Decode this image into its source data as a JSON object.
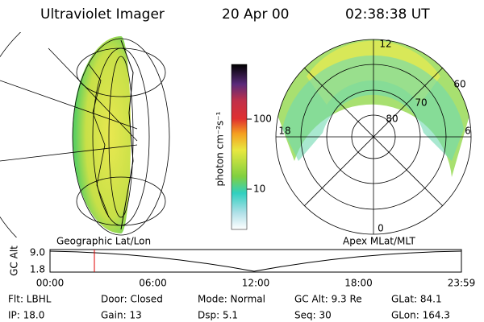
{
  "header": {
    "title": "Ultraviolet Imager",
    "date": "20 Apr 00",
    "time": "02:38:38 UT"
  },
  "colorbar": {
    "label": "photon cm⁻²s⁻¹",
    "ticks": [
      "100",
      "10"
    ]
  },
  "polar": {
    "labels": [
      "12",
      "60",
      "70",
      "80",
      "18",
      "6",
      "0"
    ]
  },
  "panel_labels": [
    "Geographic Lat/Lon",
    "Apex MLat/MLT"
  ],
  "orbit": {
    "ylabel": "GC Alt",
    "yticks": [
      "9.0",
      "1.8"
    ],
    "xticks": [
      "00:00",
      "06:00",
      "12:00",
      "18:00",
      "23:59"
    ]
  },
  "info": {
    "rows": [
      [
        "Flt: LBHL",
        "Door: Closed",
        "Mode: Normal",
        "GC Alt: 9.3 Re",
        "GLat: 84.1"
      ],
      [
        "IP: 18.0",
        "Gain: 13",
        "Dsp:    5.1",
        "Seq: 30",
        "GLon: 164.3"
      ]
    ]
  }
}
